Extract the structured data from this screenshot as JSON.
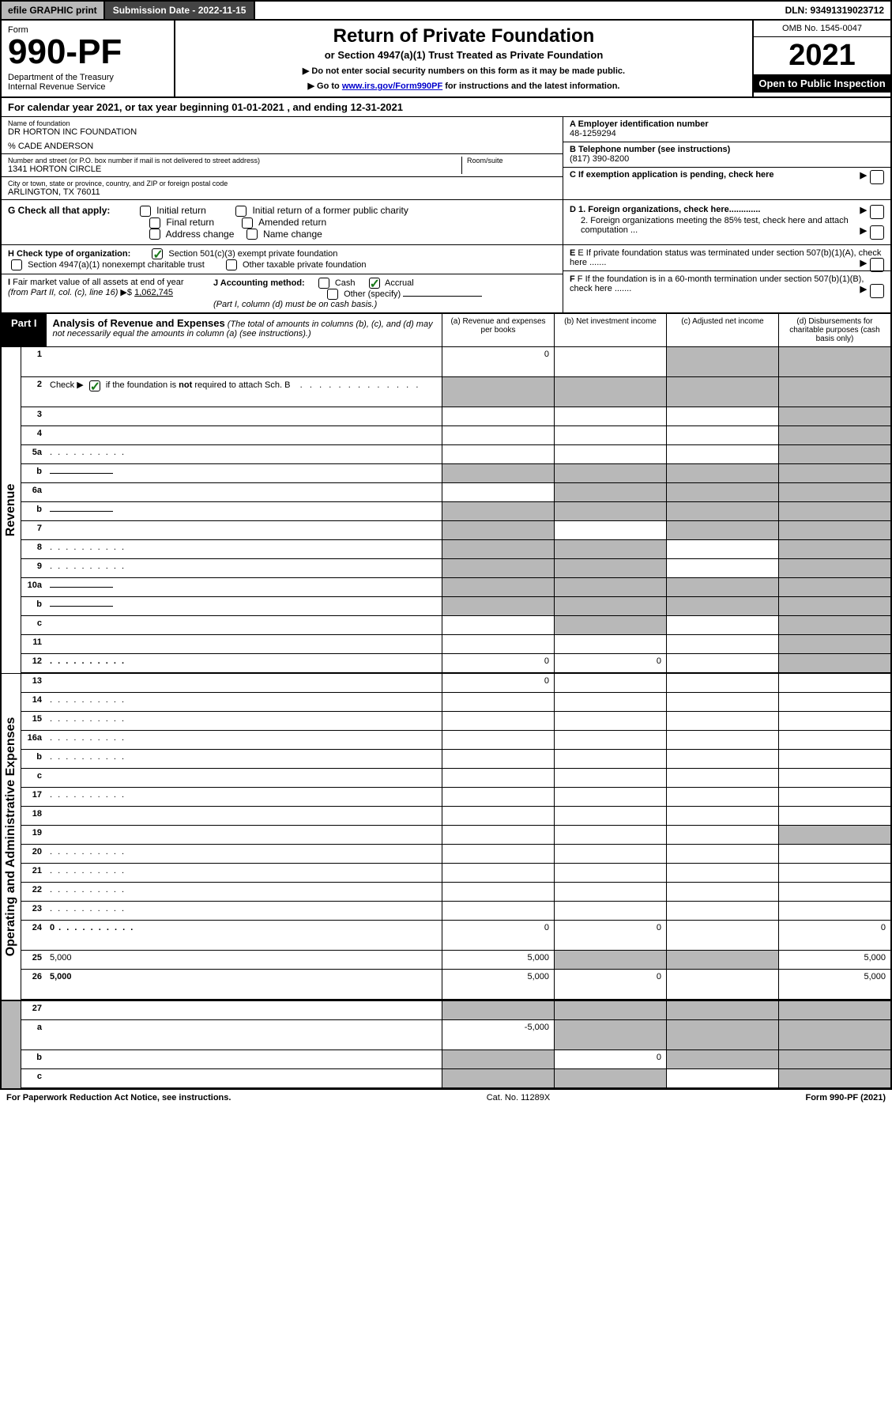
{
  "topbar": {
    "efile": "efile GRAPHIC print",
    "submission": "Submission Date - 2022-11-15",
    "dln": "DLN: 93491319023712"
  },
  "header": {
    "form_label": "Form",
    "form_number": "990-PF",
    "dept": "Department of the Treasury\nInternal Revenue Service",
    "title": "Return of Private Foundation",
    "subtitle": "or Section 4947(a)(1) Trust Treated as Private Foundation",
    "instr1": "▶ Do not enter social security numbers on this form as it may be made public.",
    "instr2_pre": "▶ Go to ",
    "instr2_link": "www.irs.gov/Form990PF",
    "instr2_post": " for instructions and the latest information.",
    "omb": "OMB No. 1545-0047",
    "year": "2021",
    "inspect": "Open to Public Inspection"
  },
  "calendar": "For calendar year 2021, or tax year beginning 01-01-2021                          , and ending 12-31-2021",
  "entity": {
    "name_lbl": "Name of foundation",
    "name": "DR HORTON INC FOUNDATION",
    "care": "% CADE ANDERSON",
    "addr_lbl": "Number and street (or P.O. box number if mail is not delivered to street address)",
    "addr": "1341 HORTON CIRCLE",
    "room_lbl": "Room/suite",
    "city_lbl": "City or town, state or province, country, and ZIP or foreign postal code",
    "city": "ARLINGTON, TX  76011",
    "a_lbl": "A Employer identification number",
    "a_val": "48-1259294",
    "b_lbl": "B Telephone number (see instructions)",
    "b_val": "(817) 390-8200",
    "c_lbl": "C If exemption application is pending, check here"
  },
  "section_g": {
    "g_lbl": "G Check all that apply:",
    "opts": [
      "Initial return",
      "Initial return of a former public charity",
      "Final return",
      "Amended return",
      "Address change",
      "Name change"
    ],
    "d1": "D 1. Foreign organizations, check here.............",
    "d2": "2. Foreign organizations meeting the 85% test, check here and attach computation ..."
  },
  "section_h": {
    "h_lbl": "H Check type of organization:",
    "h_opt1": "Section 501(c)(3) exempt private foundation",
    "h_opt2": "Section 4947(a)(1) nonexempt charitable trust",
    "h_opt3": "Other taxable private foundation",
    "e_lbl": "E  If private foundation status was terminated under section 507(b)(1)(A), check here ......."
  },
  "section_i": {
    "i_lbl": "I Fair market value of all assets at end of year (from Part II, col. (c), line 16) ▶$ ",
    "i_val": "1,062,745",
    "j_lbl": "J Accounting method:",
    "j_opts": [
      "Cash",
      "Accrual",
      "Other (specify)"
    ],
    "j_note": "(Part I, column (d) must be on cash basis.)",
    "f_lbl": "F  If the foundation is in a 60-month termination under section 507(b)(1)(B), check here ......."
  },
  "part1": {
    "badge": "Part I",
    "title": "Analysis of Revenue and Expenses",
    "title_note": " (The total of amounts in columns (b), (c), and (d) may not necessarily equal the amounts in column (a) (see instructions).)",
    "colA": "(a)   Revenue and expenses per books",
    "colB": "(b)   Net investment income",
    "colC": "(c)   Adjusted net income",
    "colD": "(d)   Disbursements for charitable purposes (cash basis only)"
  },
  "sides": {
    "revenue": "Revenue",
    "expenses": "Operating and Administrative Expenses"
  },
  "rows": [
    {
      "n": "1",
      "d": "",
      "a": "0",
      "b": "",
      "c": "",
      "shadeB": false,
      "shadeC": true,
      "shadeD": true,
      "tall": true
    },
    {
      "n": "2",
      "d": "",
      "a": "",
      "b": "",
      "c": "",
      "shadeA": true,
      "shadeB": true,
      "shadeC": true,
      "shadeD": true,
      "tall": true,
      "bold_not": true
    },
    {
      "n": "3",
      "d": "",
      "a": "",
      "b": "",
      "c": "",
      "shadeD": true
    },
    {
      "n": "4",
      "d": "",
      "a": "",
      "b": "",
      "c": "",
      "shadeD": true
    },
    {
      "n": "5a",
      "d": "",
      "a": "",
      "b": "",
      "c": "",
      "shadeD": true,
      "dots": true
    },
    {
      "n": "b",
      "d": "",
      "a": "",
      "b": "",
      "c": "",
      "shadeA": true,
      "shadeB": true,
      "shadeC": true,
      "shadeD": true,
      "inline_box": true
    },
    {
      "n": "6a",
      "d": "",
      "a": "",
      "b": "",
      "c": "",
      "shadeB": true,
      "shadeC": true,
      "shadeD": true
    },
    {
      "n": "b",
      "d": "",
      "a": "",
      "b": "",
      "c": "",
      "shadeA": true,
      "shadeB": true,
      "shadeC": true,
      "shadeD": true,
      "inline_box": true
    },
    {
      "n": "7",
      "d": "",
      "a": "",
      "b": "",
      "c": "",
      "shadeA": true,
      "shadeC": true,
      "shadeD": true
    },
    {
      "n": "8",
      "d": "",
      "a": "",
      "b": "",
      "c": "",
      "shadeA": true,
      "shadeB": true,
      "shadeD": true,
      "dots": true
    },
    {
      "n": "9",
      "d": "",
      "a": "",
      "b": "",
      "c": "",
      "shadeA": true,
      "shadeB": true,
      "shadeD": true,
      "dots": true
    },
    {
      "n": "10a",
      "d": "",
      "a": "",
      "b": "",
      "c": "",
      "shadeA": true,
      "shadeB": true,
      "shadeC": true,
      "shadeD": true,
      "inline_box": true
    },
    {
      "n": "b",
      "d": "",
      "a": "",
      "b": "",
      "c": "",
      "shadeA": true,
      "shadeB": true,
      "shadeC": true,
      "shadeD": true,
      "inline_box": true
    },
    {
      "n": "c",
      "d": "",
      "a": "",
      "b": "",
      "c": "",
      "shadeB": true,
      "shadeD": true
    },
    {
      "n": "11",
      "d": "",
      "a": "",
      "b": "",
      "c": "",
      "shadeD": true
    },
    {
      "n": "12",
      "d": "",
      "a": "0",
      "b": "0",
      "c": "",
      "shadeD": true,
      "bold": true,
      "dots": true
    }
  ],
  "exp_rows": [
    {
      "n": "13",
      "d": "",
      "a": "0",
      "b": "",
      "c": ""
    },
    {
      "n": "14",
      "d": "",
      "a": "",
      "b": "",
      "c": "",
      "dots": true
    },
    {
      "n": "15",
      "d": "",
      "a": "",
      "b": "",
      "c": "",
      "dots": true
    },
    {
      "n": "16a",
      "d": "",
      "a": "",
      "b": "",
      "c": "",
      "dots": true
    },
    {
      "n": "b",
      "d": "",
      "a": "",
      "b": "",
      "c": "",
      "dots": true
    },
    {
      "n": "c",
      "d": "",
      "a": "",
      "b": "",
      "c": ""
    },
    {
      "n": "17",
      "d": "",
      "a": "",
      "b": "",
      "c": "",
      "dots": true
    },
    {
      "n": "18",
      "d": "",
      "a": "",
      "b": "",
      "c": ""
    },
    {
      "n": "19",
      "d": "",
      "a": "",
      "b": "",
      "c": "",
      "shadeD": true
    },
    {
      "n": "20",
      "d": "",
      "a": "",
      "b": "",
      "c": "",
      "dots": true
    },
    {
      "n": "21",
      "d": "",
      "a": "",
      "b": "",
      "c": "",
      "dots": true
    },
    {
      "n": "22",
      "d": "",
      "a": "",
      "b": "",
      "c": "",
      "dots": true
    },
    {
      "n": "23",
      "d": "",
      "a": "",
      "b": "",
      "c": "",
      "dots": true
    },
    {
      "n": "24",
      "d": "0",
      "a": "0",
      "b": "0",
      "c": "",
      "bold": true,
      "tall": true,
      "dots": true
    },
    {
      "n": "25",
      "d": "5,000",
      "a": "5,000",
      "b": "",
      "c": "",
      "shadeB": true,
      "shadeC": true
    },
    {
      "n": "26",
      "d": "5,000",
      "a": "5,000",
      "b": "0",
      "c": "",
      "bold": true,
      "tall": true
    }
  ],
  "final_rows": [
    {
      "n": "27",
      "d": "",
      "a": "",
      "b": "",
      "c": "",
      "shadeA": true,
      "shadeB": true,
      "shadeC": true,
      "shadeD": true
    },
    {
      "n": "a",
      "d": "",
      "a": "-5,000",
      "b": "",
      "c": "",
      "shadeB": true,
      "shadeC": true,
      "shadeD": true,
      "bold": true,
      "tall": true
    },
    {
      "n": "b",
      "d": "",
      "a": "",
      "b": "0",
      "c": "",
      "shadeA": true,
      "shadeC": true,
      "shadeD": true,
      "bold": true
    },
    {
      "n": "c",
      "d": "",
      "a": "",
      "b": "",
      "c": "",
      "shadeA": true,
      "shadeB": true,
      "shadeD": true,
      "bold": true
    }
  ],
  "footer": {
    "left": "For Paperwork Reduction Act Notice, see instructions.",
    "mid": "Cat. No. 11289X",
    "right": "Form 990-PF (2021)"
  },
  "colors": {
    "shade": "#b8b8b8",
    "border": "#000000",
    "link": "#0000cc",
    "check": "#1a7a1a"
  }
}
